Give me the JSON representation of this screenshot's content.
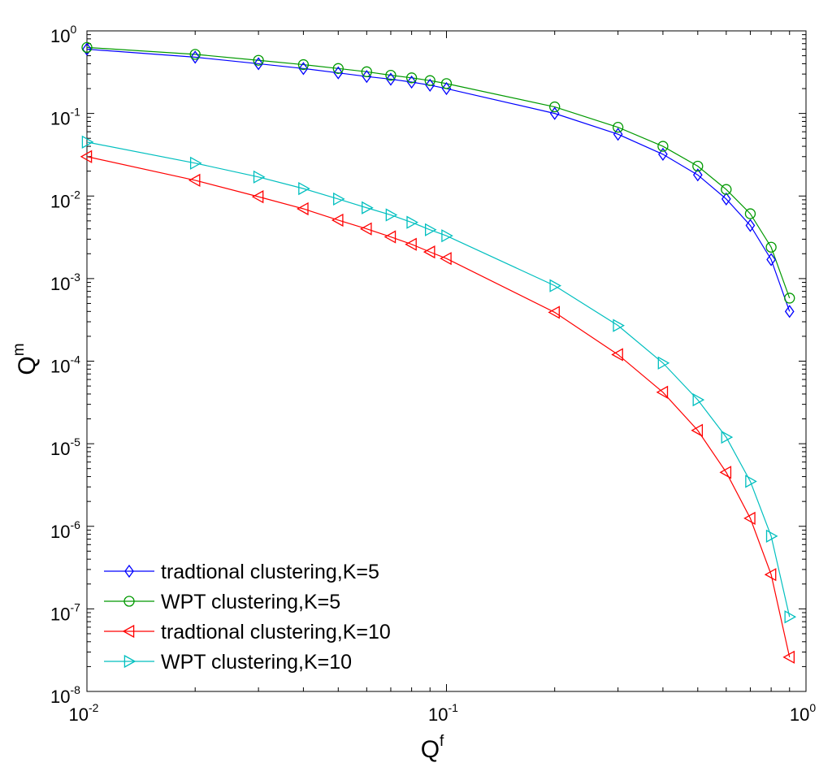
{
  "chart_data": {
    "type": "line",
    "title": "",
    "xlabel": "Q",
    "xlabel_superscript": "f",
    "ylabel": "Q",
    "ylabel_superscript": "m",
    "xscale": "log",
    "yscale": "log",
    "xlim": [
      0.01,
      1
    ],
    "ylim": [
      1e-08,
      1
    ],
    "grid": false,
    "legend_position": "bottom-left",
    "x_ticks": [
      {
        "base": "10",
        "exp": "-2"
      },
      {
        "base": "10",
        "exp": "-1"
      },
      {
        "base": "10",
        "exp": "0"
      }
    ],
    "y_ticks": [
      {
        "base": "10",
        "exp": "0"
      },
      {
        "base": "10",
        "exp": "-1"
      },
      {
        "base": "10",
        "exp": "-2"
      },
      {
        "base": "10",
        "exp": "-3"
      },
      {
        "base": "10",
        "exp": "-4"
      },
      {
        "base": "10",
        "exp": "-5"
      },
      {
        "base": "10",
        "exp": "-6"
      },
      {
        "base": "10",
        "exp": "-7"
      },
      {
        "base": "10",
        "exp": "-8"
      }
    ],
    "x": [
      0.01,
      0.02,
      0.03,
      0.04,
      0.05,
      0.06,
      0.07,
      0.08,
      0.09,
      0.1,
      0.2,
      0.3,
      0.4,
      0.5,
      0.6,
      0.7,
      0.8,
      0.9
    ],
    "series": [
      {
        "name": "tradtional clustering,K=5",
        "color": "#0000ff",
        "marker": "diamond",
        "values": [
          0.6,
          0.48,
          0.4,
          0.35,
          0.31,
          0.28,
          0.26,
          0.24,
          0.22,
          0.2,
          0.1,
          0.056,
          0.032,
          0.018,
          0.0092,
          0.0044,
          0.0017,
          0.0004
        ]
      },
      {
        "name": "WPT clustering,K=5",
        "color": "#009900",
        "marker": "circle",
        "values": [
          0.63,
          0.52,
          0.44,
          0.39,
          0.35,
          0.32,
          0.29,
          0.27,
          0.25,
          0.23,
          0.12,
          0.068,
          0.04,
          0.023,
          0.012,
          0.0061,
          0.0024,
          0.00058
        ]
      },
      {
        "name": "tradtional clustering,K=10",
        "color": "#ff0000",
        "marker": "triangle-left",
        "values": [
          0.03,
          0.0155,
          0.0098,
          0.007,
          0.0051,
          0.004,
          0.0032,
          0.0026,
          0.0021,
          0.00175,
          0.00039,
          0.00012,
          4.2e-05,
          1.45e-05,
          4.5e-06,
          1.25e-06,
          2.6e-07,
          2.6e-08
        ]
      },
      {
        "name": "WPT clustering,K=10",
        "color": "#00bfbf",
        "marker": "triangle-right",
        "values": [
          0.045,
          0.025,
          0.017,
          0.0123,
          0.0092,
          0.0072,
          0.0059,
          0.0048,
          0.0039,
          0.0033,
          0.00082,
          0.00027,
          9.5e-05,
          3.4e-05,
          1.2e-05,
          3.5e-06,
          7.6e-07,
          8e-08
        ]
      }
    ]
  }
}
